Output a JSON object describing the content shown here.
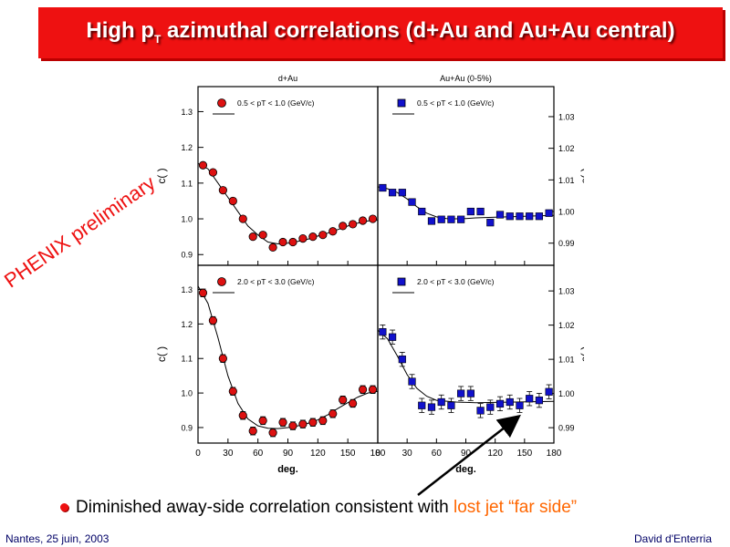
{
  "title": {
    "main": "High p",
    "sub": "T",
    "rest": " azimuthal correlations (d+Au and Au+Au central)"
  },
  "watermark": "PHENIX preliminary",
  "bullet": {
    "text": "Diminished away-side correlation consistent with ",
    "highlight": "lost jet “far side”"
  },
  "footer": {
    "left": "Nantes, 25 juin, 2003",
    "right": "David d'Enterria"
  },
  "colors": {
    "title_bg": "#ee1111",
    "dAu_marker": "#dd1111",
    "AuAu_marker": "#1111cc",
    "accent": "#ff6600"
  },
  "chart_data": [
    {
      "type": "scatter",
      "panel": "top-left",
      "column_title": "d+Au",
      "legend": "0.5 < pT < 1.0 (GeV/c)",
      "ylabel": "c(  )",
      "ylim": [
        0.87,
        1.37
      ],
      "yticks": [
        "0.9",
        "1.0",
        "1.1",
        "1.2",
        "1.3"
      ],
      "xlim": [
        0,
        180
      ],
      "x": [
        5,
        15,
        25,
        35,
        45,
        55,
        65,
        75,
        85,
        95,
        105,
        115,
        125,
        135,
        145,
        155,
        165,
        175
      ],
      "y": [
        1.15,
        1.13,
        1.08,
        1.05,
        1.0,
        0.95,
        0.955,
        0.92,
        0.935,
        0.935,
        0.945,
        0.95,
        0.955,
        0.965,
        0.98,
        0.985,
        0.995,
        1.0
      ],
      "fit": [
        [
          0,
          1.155
        ],
        [
          10,
          1.14
        ],
        [
          20,
          1.1
        ],
        [
          30,
          1.06
        ],
        [
          40,
          1.02
        ],
        [
          50,
          0.98
        ],
        [
          60,
          0.955
        ],
        [
          70,
          0.935
        ],
        [
          80,
          0.93
        ],
        [
          90,
          0.932
        ],
        [
          100,
          0.937
        ],
        [
          110,
          0.943
        ],
        [
          120,
          0.952
        ],
        [
          130,
          0.96
        ],
        [
          140,
          0.97
        ],
        [
          150,
          0.98
        ],
        [
          160,
          0.988
        ],
        [
          170,
          0.994
        ],
        [
          180,
          0.997
        ]
      ]
    },
    {
      "type": "scatter",
      "panel": "top-right",
      "column_title": "Au+Au (0-5%)",
      "legend": "0.5 < pT < 1.0 (GeV/c)",
      "ylabel": "c(  )",
      "ylim": [
        0.983,
        1.0395
      ],
      "yticks": [
        "0.99",
        "1.00",
        "1.01",
        "1.02",
        "1.03"
      ],
      "xlim": [
        0,
        180
      ],
      "x": [
        5,
        15,
        25,
        35,
        45,
        55,
        65,
        75,
        85,
        95,
        105,
        115,
        125,
        135,
        145,
        155,
        165,
        175
      ],
      "y": [
        1.0075,
        1.006,
        1.006,
        1.003,
        1.0,
        0.997,
        0.9975,
        0.9975,
        0.9975,
        1.0,
        1.0,
        0.9965,
        0.999,
        0.9985,
        0.9985,
        0.9985,
        0.9985,
        0.9995
      ],
      "fit": [
        [
          0,
          1.0078
        ],
        [
          10,
          1.0072
        ],
        [
          20,
          1.006
        ],
        [
          30,
          1.004
        ],
        [
          40,
          1.0015
        ],
        [
          50,
          0.9995
        ],
        [
          60,
          0.9983
        ],
        [
          70,
          0.9978
        ],
        [
          80,
          0.9977
        ],
        [
          90,
          0.9978
        ],
        [
          100,
          0.998
        ],
        [
          120,
          0.9982
        ],
        [
          140,
          0.9984
        ],
        [
          160,
          0.9986
        ],
        [
          180,
          0.9988
        ]
      ]
    },
    {
      "type": "scatter",
      "panel": "bottom-left",
      "legend": "2.0 < pT < 3.0 (GeV/c)",
      "ylabel": "c(  )",
      "xlabel": "   deg.  ",
      "ylim": [
        0.855,
        1.37
      ],
      "yticks": [
        "0.9",
        "1.0",
        "1.1",
        "1.2",
        "1.3"
      ],
      "xlim": [
        0,
        180
      ],
      "xticks": [
        "0",
        "30",
        "60",
        "90",
        "120",
        "150",
        "180"
      ],
      "x": [
        5,
        15,
        25,
        35,
        45,
        55,
        65,
        75,
        85,
        95,
        105,
        115,
        125,
        135,
        145,
        155,
        165,
        175
      ],
      "y": [
        1.29,
        1.21,
        1.1,
        1.005,
        0.935,
        0.89,
        0.92,
        0.885,
        0.915,
        0.905,
        0.91,
        0.915,
        0.92,
        0.94,
        0.98,
        0.97,
        1.01,
        1.01
      ],
      "fit": [
        [
          0,
          1.31
        ],
        [
          10,
          1.26
        ],
        [
          20,
          1.16
        ],
        [
          30,
          1.05
        ],
        [
          40,
          0.97
        ],
        [
          50,
          0.925
        ],
        [
          60,
          0.905
        ],
        [
          70,
          0.898
        ],
        [
          80,
          0.897
        ],
        [
          90,
          0.9
        ],
        [
          100,
          0.905
        ],
        [
          110,
          0.912
        ],
        [
          120,
          0.922
        ],
        [
          130,
          0.937
        ],
        [
          140,
          0.955
        ],
        [
          150,
          0.972
        ],
        [
          160,
          0.988
        ],
        [
          170,
          1.0
        ],
        [
          180,
          1.005
        ]
      ]
    },
    {
      "type": "scatter",
      "panel": "bottom-right",
      "legend": "2.0 < pT < 3.0 (GeV/c)",
      "ylabel": "c(  )",
      "xlabel": "   deg.  ",
      "ylim": [
        0.9855,
        1.0375
      ],
      "yticks": [
        "0.99",
        "1.00",
        "1.01",
        "1.02",
        "1.03"
      ],
      "xlim": [
        0,
        180
      ],
      "xticks": [
        "0",
        "30",
        "60",
        "90",
        "120",
        "150",
        "180"
      ],
      "x": [
        5,
        15,
        25,
        35,
        45,
        55,
        65,
        75,
        85,
        95,
        105,
        115,
        125,
        135,
        145,
        155,
        165,
        175
      ],
      "y": [
        1.018,
        1.0165,
        1.01,
        1.0035,
        0.9965,
        0.996,
        0.9975,
        0.9965,
        1.0,
        1.0,
        0.995,
        0.996,
        0.997,
        0.9975,
        0.9965,
        0.9985,
        0.998,
        1.0005
      ],
      "fit": [
        [
          0,
          1.0185
        ],
        [
          10,
          1.016
        ],
        [
          20,
          1.011
        ],
        [
          30,
          1.0055
        ],
        [
          40,
          1.0015
        ],
        [
          50,
          0.9992
        ],
        [
          60,
          0.998
        ],
        [
          80,
          0.9975
        ],
        [
          100,
          0.9973
        ],
        [
          120,
          0.9974
        ],
        [
          140,
          0.9975
        ],
        [
          160,
          0.9976
        ],
        [
          180,
          0.9977
        ]
      ]
    }
  ]
}
